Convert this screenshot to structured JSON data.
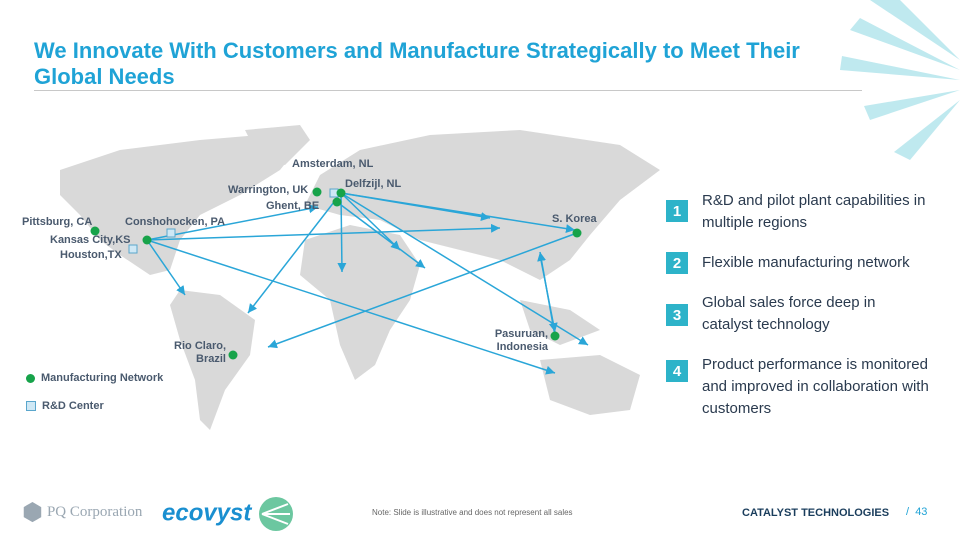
{
  "header": {
    "title": "We Innovate With Customers and Manufacture Strategically to Meet Their Global Needs"
  },
  "map": {
    "locations": [
      {
        "name": "Amsterdam, NL",
        "type": "rnd"
      },
      {
        "name": "Warrington, UK",
        "type": "manufacturing"
      },
      {
        "name": "Delfzijl, NL",
        "type": "manufacturing"
      },
      {
        "name": "Ghent, BE",
        "type": "manufacturing"
      },
      {
        "name": "Pittsburg, CA",
        "type": "manufacturing"
      },
      {
        "name": "Conshohocken, PA",
        "type": "rnd"
      },
      {
        "name": "Kansas City,KS",
        "type": "manufacturing"
      },
      {
        "name": "Houston,TX",
        "type": "rnd"
      },
      {
        "name": "S. Korea",
        "type": "manufacturing"
      },
      {
        "name": "Pasuruan, Indonesia",
        "type": "manufacturing"
      },
      {
        "name": "Rio Claro, Brazil",
        "type": "manufacturing"
      }
    ],
    "legend": {
      "manufacturing": "Manufacturing Network",
      "rnd": "R&D Center"
    },
    "colors": {
      "manufacturing": "#17a34a",
      "rnd": "#cfe8f5",
      "arrow": "#2aa6d8",
      "land": "#d9d9d9"
    }
  },
  "points": [
    {
      "num": "1",
      "text": "R&D and pilot plant capabilities in multiple regions"
    },
    {
      "num": "2",
      "text": "Flexible manufacturing network"
    },
    {
      "num": "3",
      "text": "Global sales force deep in catalyst technology"
    },
    {
      "num": "4",
      "text": "Product performance is monitored and improved in collaboration with customers"
    }
  ],
  "footer": {
    "note": "Note: Slide is illustrative and does not represent all sales",
    "division": "CATALYST TECHNOLOGIES",
    "separator": "/",
    "page": "43",
    "logo_pq": "PQ Corporation",
    "logo_ecovyst": "ecovyst"
  }
}
